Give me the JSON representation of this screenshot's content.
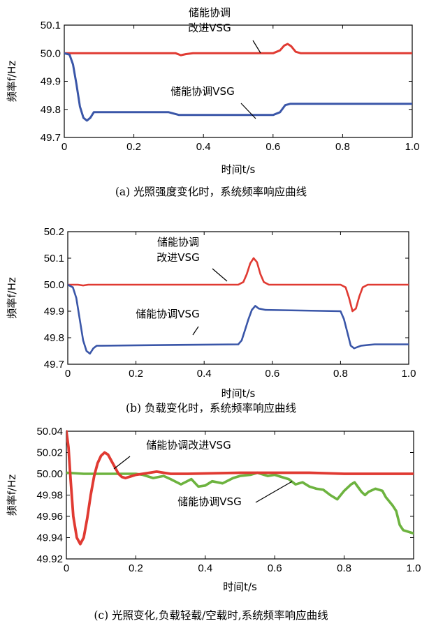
{
  "chart_data": [
    {
      "type": "line",
      "caption": "(a) 光照强度变化时，系统频率响应曲线",
      "xlabel": "时间t/s",
      "ylabel": "频率f/Hz",
      "xlim": [
        0,
        1.0
      ],
      "ylim": [
        49.7,
        50.1
      ],
      "xticks": [
        "0",
        "0.2",
        "0.4",
        "0.6",
        "0.8",
        "1.0"
      ],
      "yticks": [
        "49.7",
        "49.8",
        "49.9",
        "50.0",
        "50.1"
      ],
      "series": [
        {
          "name": "储能协调改进VSG",
          "color": "#e03a32",
          "x": [
            0,
            0.3,
            0.32,
            0.335,
            0.35,
            0.37,
            0.6,
            0.62,
            0.632,
            0.642,
            0.652,
            0.665,
            0.68,
            1.0
          ],
          "y": [
            50.0,
            50.0,
            50.0,
            49.993,
            49.997,
            50.0,
            50.0,
            50.01,
            50.027,
            50.033,
            50.025,
            50.005,
            50.0,
            50.0
          ]
        },
        {
          "name": "储能协调VSG",
          "color": "#3a56a8",
          "x": [
            0,
            0.015,
            0.025,
            0.035,
            0.045,
            0.055,
            0.065,
            0.075,
            0.085,
            0.1,
            0.15,
            0.3,
            0.33,
            0.35,
            0.6,
            0.62,
            0.635,
            0.65,
            0.7,
            1.0
          ],
          "y": [
            50.0,
            49.995,
            49.96,
            49.89,
            49.81,
            49.77,
            49.76,
            49.77,
            49.79,
            49.79,
            49.79,
            49.79,
            49.78,
            49.78,
            49.78,
            49.79,
            49.815,
            49.82,
            49.82,
            49.82
          ]
        }
      ],
      "annotations": [
        {
          "lines": [
            "储能协调",
            "改进VSG"
          ],
          "target": "储能协调改进VSG"
        },
        {
          "lines": [
            "储能协调VSG"
          ],
          "target": "储能协调VSG"
        }
      ]
    },
    {
      "type": "line",
      "caption": "(b) 负载变化时，系统频率响应曲线",
      "xlabel": "时间t/s",
      "ylabel": "频率f/Hz",
      "xlim": [
        0,
        1.0
      ],
      "ylim": [
        49.7,
        50.2
      ],
      "xticks": [
        "0",
        "0.2",
        "0.4",
        "0.6",
        "0.8",
        "1.0"
      ],
      "yticks": [
        "49.7",
        "49.8",
        "49.9",
        "50.0",
        "50.1",
        "50.2"
      ],
      "series": [
        {
          "name": "储能协调改进VSG",
          "color": "#e03a32",
          "x": [
            0,
            0.03,
            0.045,
            0.06,
            0.5,
            0.515,
            0.525,
            0.535,
            0.545,
            0.555,
            0.565,
            0.575,
            0.59,
            0.8,
            0.815,
            0.825,
            0.835,
            0.845,
            0.855,
            0.865,
            0.88,
            1.0
          ],
          "y": [
            50.0,
            50.0,
            49.997,
            50.0,
            50.0,
            50.01,
            50.04,
            50.08,
            50.1,
            50.085,
            50.04,
            50.01,
            50.0,
            50.0,
            49.99,
            49.95,
            49.9,
            49.91,
            49.955,
            49.99,
            50.0,
            50.0
          ],
          "width": 2.6
        },
        {
          "name": "储能协调VSG",
          "color": "#3a56a8",
          "x": [
            0,
            0.015,
            0.025,
            0.035,
            0.045,
            0.055,
            0.065,
            0.075,
            0.085,
            0.1,
            0.5,
            0.51,
            0.52,
            0.53,
            0.54,
            0.55,
            0.56,
            0.58,
            0.8,
            0.81,
            0.82,
            0.83,
            0.84,
            0.86,
            0.9,
            1.0
          ],
          "y": [
            50.0,
            49.99,
            49.95,
            49.87,
            49.79,
            49.75,
            49.74,
            49.76,
            49.77,
            49.77,
            49.775,
            49.79,
            49.83,
            49.87,
            49.905,
            49.92,
            49.91,
            49.905,
            49.9,
            49.87,
            49.82,
            49.77,
            49.76,
            49.77,
            49.775,
            49.775
          ],
          "width": 2.6
        }
      ],
      "annotations": [
        {
          "lines": [
            "储能协调",
            "改进VSG"
          ],
          "target": "储能协调改进VSG"
        },
        {
          "lines": [
            "储能协调VSG"
          ],
          "target": "储能协调VSG"
        }
      ]
    },
    {
      "type": "line",
      "caption": "(c) 光照变化,负载轻载/空载时,系统频率响应曲线",
      "xlabel": "时间t/s",
      "ylabel": "频率f/Hz",
      "xlim": [
        0,
        1.0
      ],
      "ylim": [
        49.92,
        50.04
      ],
      "xticks": [
        "0",
        "0.2",
        "0.4",
        "0.6",
        "0.8",
        "1.0"
      ],
      "yticks": [
        "49.92",
        "49.94",
        "49.96",
        "49.98",
        "50.00",
        "50.02",
        "50.04"
      ],
      "series": [
        {
          "name": "储能协调VSG",
          "color": "#6db33f",
          "x": [
            0,
            0.05,
            0.1,
            0.15,
            0.2,
            0.22,
            0.25,
            0.28,
            0.3,
            0.33,
            0.36,
            0.38,
            0.4,
            0.42,
            0.45,
            0.48,
            0.5,
            0.53,
            0.55,
            0.58,
            0.6,
            0.62,
            0.64,
            0.66,
            0.68,
            0.7,
            0.72,
            0.74,
            0.76,
            0.78,
            0.8,
            0.82,
            0.83,
            0.85,
            0.86,
            0.87,
            0.89,
            0.91,
            0.92,
            0.94,
            0.95,
            0.96,
            0.97,
            0.99,
            1.0
          ],
          "y": [
            50.001,
            50.0,
            50.0,
            50.0,
            50.0,
            49.999,
            49.996,
            49.998,
            49.995,
            49.99,
            49.995,
            49.988,
            49.989,
            49.993,
            49.991,
            49.996,
            49.998,
            49.999,
            50.001,
            49.998,
            49.999,
            49.997,
            49.995,
            49.99,
            49.992,
            49.988,
            49.986,
            49.985,
            49.98,
            49.976,
            49.984,
            49.99,
            49.992,
            49.983,
            49.98,
            49.983,
            49.986,
            49.984,
            49.978,
            49.97,
            49.965,
            49.952,
            49.947,
            49.945,
            49.944
          ],
          "width": 3.6
        },
        {
          "name": "储能协调改进VSG",
          "color": "#e03a32",
          "x": [
            0,
            0.006,
            0.012,
            0.02,
            0.03,
            0.04,
            0.05,
            0.06,
            0.07,
            0.08,
            0.09,
            0.1,
            0.11,
            0.12,
            0.13,
            0.14,
            0.15,
            0.16,
            0.17,
            0.18,
            0.19,
            0.2,
            0.22,
            0.24,
            0.26,
            0.28,
            0.3,
            0.35,
            0.5,
            0.7,
            0.8,
            1.0
          ],
          "y": [
            50.04,
            50.025,
            49.995,
            49.96,
            49.94,
            49.934,
            49.94,
            49.958,
            49.98,
            49.998,
            50.01,
            50.017,
            50.02,
            50.018,
            50.012,
            50.006,
            50.0,
            49.997,
            49.996,
            49.997,
            49.998,
            49.999,
            50.0,
            50.001,
            50.002,
            50.001,
            50.0,
            50.0,
            50.001,
            50.001,
            50.0,
            50.0
          ],
          "width": 3.8
        }
      ],
      "annotations": [
        {
          "lines": [
            "储能协调改进VSG"
          ],
          "target": "储能协调改进VSG"
        },
        {
          "lines": [
            "储能协调VSG"
          ],
          "target": "储能协调VSG"
        }
      ]
    }
  ]
}
